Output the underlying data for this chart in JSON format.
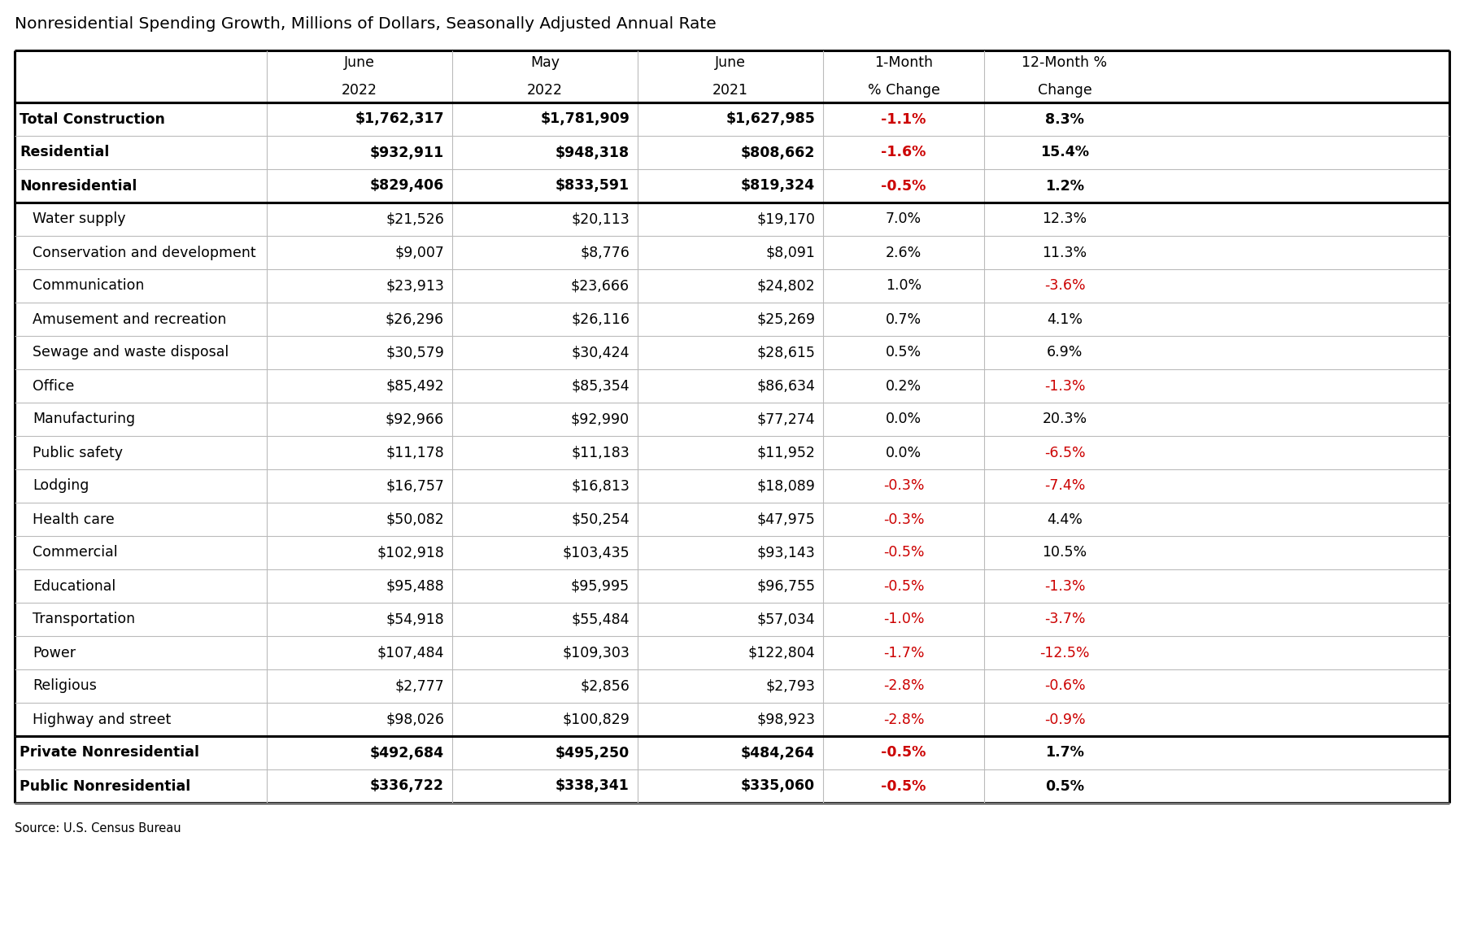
{
  "title": "Nonresidential Spending Growth, Millions of Dollars, Seasonally Adjusted Annual Rate",
  "source": "Source: U.S. Census Bureau",
  "col_headers": [
    [
      "June",
      "May",
      "June",
      "1-Month",
      "12-Month %"
    ],
    [
      "2022",
      "2022",
      "2021",
      "% Change",
      "Change"
    ]
  ],
  "rows": [
    {
      "label": "Total Construction",
      "june22": "$1,762,317",
      "may22": "$1,781,909",
      "june21": "$1,627,985",
      "m1": "-1.1%",
      "m12": "8.3%",
      "m1_red": true,
      "m12_red": false,
      "bold": true,
      "thick_below": false,
      "thick_above": true,
      "indent": false
    },
    {
      "label": "Residential",
      "june22": "$932,911",
      "may22": "$948,318",
      "june21": "$808,662",
      "m1": "-1.6%",
      "m12": "15.4%",
      "m1_red": true,
      "m12_red": false,
      "bold": true,
      "thick_below": false,
      "thick_above": false,
      "indent": false
    },
    {
      "label": "Nonresidential",
      "june22": "$829,406",
      "may22": "$833,591",
      "june21": "$819,324",
      "m1": "-0.5%",
      "m12": "1.2%",
      "m1_red": true,
      "m12_red": false,
      "bold": true,
      "thick_below": true,
      "thick_above": false,
      "indent": false
    },
    {
      "label": "Water supply",
      "june22": "$21,526",
      "may22": "$20,113",
      "june21": "$19,170",
      "m1": "7.0%",
      "m12": "12.3%",
      "m1_red": false,
      "m12_red": false,
      "bold": false,
      "thick_below": false,
      "thick_above": false,
      "indent": true
    },
    {
      "label": "Conservation and development",
      "june22": "$9,007",
      "may22": "$8,776",
      "june21": "$8,091",
      "m1": "2.6%",
      "m12": "11.3%",
      "m1_red": false,
      "m12_red": false,
      "bold": false,
      "thick_below": false,
      "thick_above": false,
      "indent": true
    },
    {
      "label": "Communication",
      "june22": "$23,913",
      "may22": "$23,666",
      "june21": "$24,802",
      "m1": "1.0%",
      "m12": "-3.6%",
      "m1_red": false,
      "m12_red": true,
      "bold": false,
      "thick_below": false,
      "thick_above": false,
      "indent": true
    },
    {
      "label": "Amusement and recreation",
      "june22": "$26,296",
      "may22": "$26,116",
      "june21": "$25,269",
      "m1": "0.7%",
      "m12": "4.1%",
      "m1_red": false,
      "m12_red": false,
      "bold": false,
      "thick_below": false,
      "thick_above": false,
      "indent": true
    },
    {
      "label": "Sewage and waste disposal",
      "june22": "$30,579",
      "may22": "$30,424",
      "june21": "$28,615",
      "m1": "0.5%",
      "m12": "6.9%",
      "m1_red": false,
      "m12_red": false,
      "bold": false,
      "thick_below": false,
      "thick_above": false,
      "indent": true
    },
    {
      "label": "Office",
      "june22": "$85,492",
      "may22": "$85,354",
      "june21": "$86,634",
      "m1": "0.2%",
      "m12": "-1.3%",
      "m1_red": false,
      "m12_red": true,
      "bold": false,
      "thick_below": false,
      "thick_above": false,
      "indent": true
    },
    {
      "label": "Manufacturing",
      "june22": "$92,966",
      "may22": "$92,990",
      "june21": "$77,274",
      "m1": "0.0%",
      "m12": "20.3%",
      "m1_red": false,
      "m12_red": false,
      "bold": false,
      "thick_below": false,
      "thick_above": false,
      "indent": true
    },
    {
      "label": "Public safety",
      "june22": "$11,178",
      "may22": "$11,183",
      "june21": "$11,952",
      "m1": "0.0%",
      "m12": "-6.5%",
      "m1_red": false,
      "m12_red": true,
      "bold": false,
      "thick_below": false,
      "thick_above": false,
      "indent": true
    },
    {
      "label": "Lodging",
      "june22": "$16,757",
      "may22": "$16,813",
      "june21": "$18,089",
      "m1": "-0.3%",
      "m12": "-7.4%",
      "m1_red": true,
      "m12_red": true,
      "bold": false,
      "thick_below": false,
      "thick_above": false,
      "indent": true
    },
    {
      "label": "Health care",
      "june22": "$50,082",
      "may22": "$50,254",
      "june21": "$47,975",
      "m1": "-0.3%",
      "m12": "4.4%",
      "m1_red": true,
      "m12_red": false,
      "bold": false,
      "thick_below": false,
      "thick_above": false,
      "indent": true
    },
    {
      "label": "Commercial",
      "june22": "$102,918",
      "may22": "$103,435",
      "june21": "$93,143",
      "m1": "-0.5%",
      "m12": "10.5%",
      "m1_red": true,
      "m12_red": false,
      "bold": false,
      "thick_below": false,
      "thick_above": false,
      "indent": true
    },
    {
      "label": "Educational",
      "june22": "$95,488",
      "may22": "$95,995",
      "june21": "$96,755",
      "m1": "-0.5%",
      "m12": "-1.3%",
      "m1_red": true,
      "m12_red": true,
      "bold": false,
      "thick_below": false,
      "thick_above": false,
      "indent": true
    },
    {
      "label": "Transportation",
      "june22": "$54,918",
      "may22": "$55,484",
      "june21": "$57,034",
      "m1": "-1.0%",
      "m12": "-3.7%",
      "m1_red": true,
      "m12_red": true,
      "bold": false,
      "thick_below": false,
      "thick_above": false,
      "indent": true
    },
    {
      "label": "Power",
      "june22": "$107,484",
      "may22": "$109,303",
      "june21": "$122,804",
      "m1": "-1.7%",
      "m12": "-12.5%",
      "m1_red": true,
      "m12_red": true,
      "bold": false,
      "thick_below": false,
      "thick_above": false,
      "indent": true
    },
    {
      "label": "Religious",
      "june22": "$2,777",
      "may22": "$2,856",
      "june21": "$2,793",
      "m1": "-2.8%",
      "m12": "-0.6%",
      "m1_red": true,
      "m12_red": true,
      "bold": false,
      "thick_below": false,
      "thick_above": false,
      "indent": true
    },
    {
      "label": "Highway and street",
      "june22": "$98,026",
      "may22": "$100,829",
      "june21": "$98,923",
      "m1": "-2.8%",
      "m12": "-0.9%",
      "m1_red": true,
      "m12_red": true,
      "bold": false,
      "thick_below": true,
      "thick_above": false,
      "indent": true
    },
    {
      "label": "Private Nonresidential",
      "june22": "$492,684",
      "may22": "$495,250",
      "june21": "$484,264",
      "m1": "-0.5%",
      "m12": "1.7%",
      "m1_red": true,
      "m12_red": false,
      "bold": true,
      "thick_below": false,
      "thick_above": false,
      "indent": false
    },
    {
      "label": "Public Nonresidential",
      "june22": "$336,722",
      "may22": "$338,341",
      "june21": "$335,060",
      "m1": "-0.5%",
      "m12": "0.5%",
      "m1_red": true,
      "m12_red": false,
      "bold": true,
      "thick_below": false,
      "thick_above": false,
      "indent": false
    }
  ],
  "bg_color": "#ffffff",
  "text_color": "#000000",
  "red_color": "#cc0000",
  "thin_line_color": "#bbbbbb",
  "thick_line_color": "#000000",
  "thin_lw": 0.8,
  "thick_lw": 2.2,
  "title_fontsize": 14.5,
  "header_fontsize": 12.5,
  "data_fontsize": 12.5,
  "source_fontsize": 10.5
}
